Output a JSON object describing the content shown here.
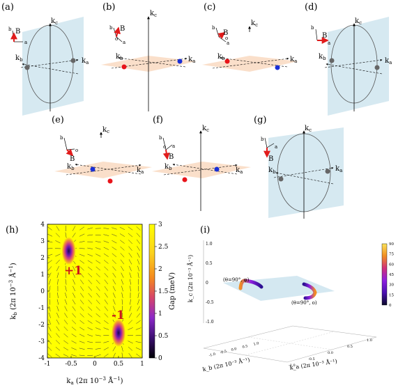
{
  "panels": {
    "a": {
      "label": "(a)"
    },
    "b": {
      "label": "(b)"
    },
    "c": {
      "label": "(c)"
    },
    "d": {
      "label": "(d)"
    },
    "e": {
      "label": "(e)"
    },
    "f": {
      "label": "(f)"
    },
    "g": {
      "label": "(g)"
    },
    "h": {
      "label": "(h)"
    },
    "i": {
      "label": "(i)"
    }
  },
  "axes3d": {
    "kc": "k",
    "kc_sub": "c",
    "ka": "k",
    "ka_sub": "a",
    "kb": "k",
    "kb_sub": "b"
  },
  "crystal": {
    "a": "a",
    "b": "b",
    "B": "B",
    "o": "o"
  },
  "colors": {
    "plane_blue": "#cfe5ef",
    "plane_orange": "#f9dcc4",
    "node_red": "#e8141a",
    "node_blue": "#1a2fd6",
    "node_gray": "#666666",
    "field_red": "#e11c1c",
    "map_yellow": "#ffff00"
  },
  "panel_h": {
    "title": "(h)",
    "ylabel_main": "k",
    "ylabel_sub": "b",
    "ylabel_unit": " (2π 10",
    "ylabel_exp": "−3",
    "ylabel_tail": " Å",
    "ylabel_exp2": "−1",
    "ylabel_close": ")",
    "xlabel_main": "k",
    "xlabel_sub": "a",
    "xlabel_unit": " (2π 10",
    "xlabel_exp": "−3",
    "xlabel_tail": " Å",
    "xlabel_exp2": "−1",
    "xlabel_close": ")",
    "plus_label": "+1",
    "minus_label": "-1",
    "colorbar_label": "Gap (meV)",
    "x_ticks": [
      "-1",
      "-0.5",
      "0",
      "0.5",
      "1"
    ],
    "y_ticks": [
      "4",
      "3",
      "2",
      "1",
      "0",
      "-1",
      "-2",
      "-3",
      "-4"
    ],
    "cb_ticks": [
      "3",
      "2.5",
      "2",
      "1.5",
      "1",
      "0.5",
      "0"
    ]
  },
  "panel_i": {
    "title": "(i)",
    "z_ticks": [
      "1.0",
      "0.5",
      "0",
      "-0.5",
      "-1.0"
    ],
    "cb_ticks": [
      "90",
      "75",
      "60",
      "45",
      "30",
      "15",
      "0"
    ],
    "anno_left": "(θ=90°, φ)",
    "anno_right": "(θ=90°, o)",
    "zlabel": "k_c (2π 10⁻³ Å⁻¹)",
    "kb_label": "k_b (2π 10⁻³ Å⁻¹)",
    "ka_label": "k_a (2π 10⁻³ Å⁻¹)",
    "kb_ticks": [
      "-1.0",
      "-0.5",
      "0.0",
      "0.5",
      "1.0"
    ],
    "ka_ticks": [
      "-1.0",
      "-0.5",
      "0.0",
      "0.5",
      "1.0"
    ]
  },
  "chart_data": [
    {
      "type": "heatmap",
      "title": "(h)",
      "xlabel": "k_a (2π 10^-3 Å^-1)",
      "ylabel": "k_b (2π 10^-3 Å^-1)",
      "xlim": [
        -1,
        1
      ],
      "ylim": [
        -4,
        4
      ],
      "colorbar": {
        "label": "Gap (meV)",
        "range": [
          0,
          3
        ]
      },
      "features": [
        {
          "label": "+1",
          "x": -0.55,
          "y": 2.4,
          "gap": 0
        },
        {
          "label": "-1",
          "x": 0.5,
          "y": -2.5,
          "gap": 0
        }
      ],
      "background_gap": 3
    },
    {
      "type": "scatter",
      "title": "(i)",
      "zlim": [
        -1.0,
        1.0
      ],
      "colorbar": {
        "range": [
          0,
          90
        ]
      },
      "annotations": [
        "(θ=90°, φ)",
        "(θ=90°, o)"
      ]
    }
  ]
}
